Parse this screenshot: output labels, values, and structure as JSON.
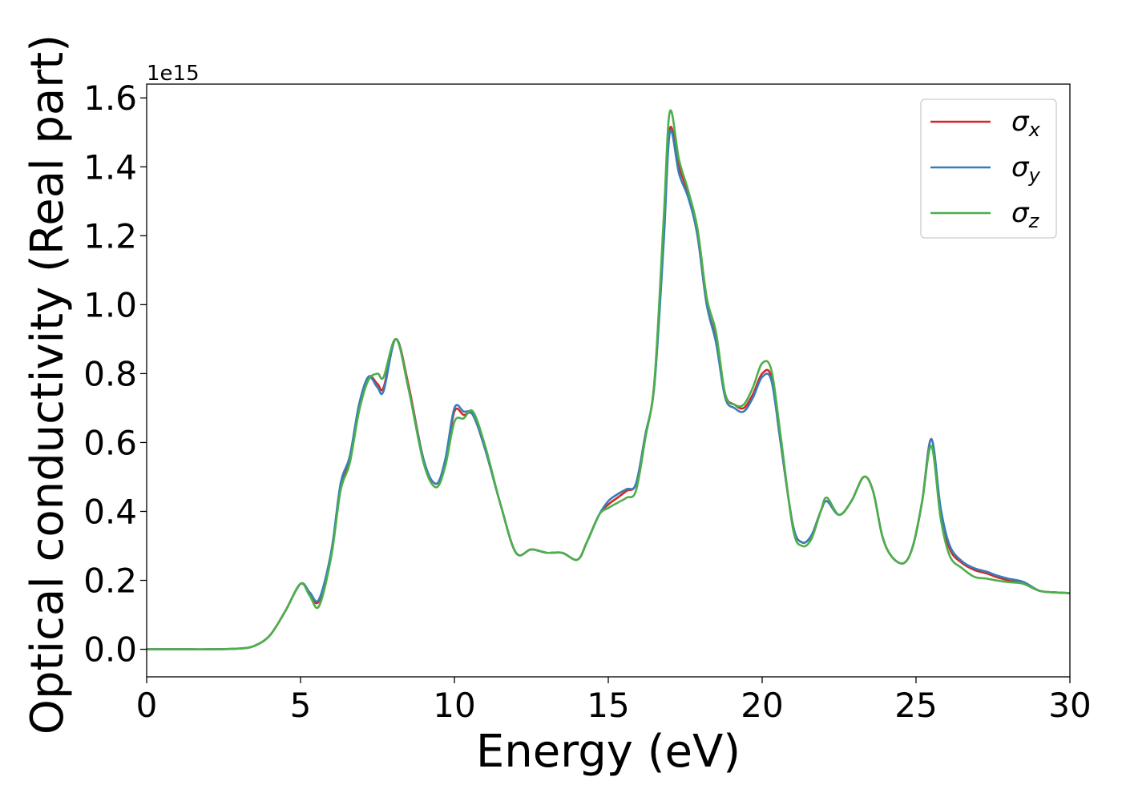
{
  "chart_data": {
    "type": "line",
    "xlabel": "Energy (eV)",
    "ylabel": "Optical conductivity (Real part)",
    "y_offset_label": "1e15",
    "xlim": [
      0,
      30
    ],
    "ylim": [
      -0.08,
      1.64
    ],
    "xticks": [
      0,
      5,
      10,
      15,
      20,
      25,
      30
    ],
    "xtick_labels": [
      "0",
      "5",
      "10",
      "15",
      "20",
      "25",
      "30"
    ],
    "yticks": [
      0.0,
      0.2,
      0.4,
      0.6,
      0.8,
      1.0,
      1.2,
      1.4,
      1.6
    ],
    "ytick_labels": [
      "0.0",
      "0.2",
      "0.4",
      "0.6",
      "0.8",
      "1.0",
      "1.2",
      "1.4",
      "1.6"
    ],
    "grid": false,
    "legend_position": "top-right",
    "series": [
      {
        "name": "σx",
        "name_main": "σ",
        "name_sub": "x",
        "color": "#d62728",
        "x": [
          0,
          1,
          2,
          3,
          3.5,
          4,
          4.5,
          5,
          5.3,
          5.6,
          6,
          6.3,
          6.6,
          6.9,
          7.2,
          7.5,
          7.7,
          8.1,
          8.5,
          9,
          9.4,
          9.7,
          10,
          10.3,
          10.6,
          11,
          11.5,
          12,
          12.5,
          13,
          13.5,
          14,
          14.3,
          14.7,
          15,
          15.3,
          15.6,
          15.9,
          16.2,
          16.5,
          16.8,
          17,
          17.3,
          17.6,
          17.9,
          18.2,
          18.5,
          18.8,
          19.1,
          19.4,
          19.7,
          20,
          20.3,
          20.6,
          21,
          21.3,
          21.6,
          21.9,
          22.1,
          22.5,
          22.9,
          23.3,
          23.6,
          23.9,
          24.2,
          24.6,
          24.9,
          25.2,
          25.5,
          25.8,
          26.1,
          26.5,
          26.9,
          27.3,
          27.6,
          28,
          28.5,
          29,
          29.5,
          30
        ],
        "y": [
          0,
          0,
          0,
          0.002,
          0.01,
          0.04,
          0.11,
          0.19,
          0.16,
          0.14,
          0.28,
          0.47,
          0.55,
          0.7,
          0.79,
          0.77,
          0.76,
          0.9,
          0.77,
          0.55,
          0.48,
          0.54,
          0.69,
          0.68,
          0.68,
          0.58,
          0.42,
          0.28,
          0.29,
          0.28,
          0.28,
          0.26,
          0.31,
          0.39,
          0.42,
          0.44,
          0.46,
          0.48,
          0.62,
          0.77,
          1.2,
          1.51,
          1.4,
          1.32,
          1.2,
          1.0,
          0.9,
          0.74,
          0.71,
          0.7,
          0.74,
          0.8,
          0.79,
          0.6,
          0.36,
          0.31,
          0.33,
          0.4,
          0.43,
          0.39,
          0.43,
          0.5,
          0.46,
          0.33,
          0.27,
          0.25,
          0.3,
          0.43,
          0.61,
          0.4,
          0.29,
          0.25,
          0.23,
          0.22,
          0.21,
          0.2,
          0.19,
          0.17,
          0.165,
          0.163
        ]
      },
      {
        "name": "σy",
        "name_main": "σ",
        "name_sub": "y",
        "color": "#377eb8",
        "x": [
          0,
          1,
          2,
          3,
          3.5,
          4,
          4.5,
          5,
          5.3,
          5.6,
          6,
          6.3,
          6.6,
          6.9,
          7.2,
          7.5,
          7.7,
          8.1,
          8.5,
          9,
          9.4,
          9.7,
          10,
          10.3,
          10.6,
          11,
          11.5,
          12,
          12.5,
          13,
          13.5,
          14,
          14.3,
          14.7,
          15,
          15.3,
          15.6,
          15.9,
          16.2,
          16.5,
          16.8,
          17,
          17.3,
          17.6,
          17.9,
          18.2,
          18.5,
          18.8,
          19.1,
          19.4,
          19.7,
          20,
          20.3,
          20.6,
          21,
          21.3,
          21.6,
          21.9,
          22.1,
          22.5,
          22.9,
          23.3,
          23.6,
          23.9,
          24.2,
          24.6,
          24.9,
          25.2,
          25.5,
          25.8,
          26.1,
          26.5,
          26.9,
          27.3,
          27.6,
          28,
          28.5,
          29,
          29.5,
          30
        ],
        "y": [
          0,
          0,
          0,
          0.002,
          0.01,
          0.04,
          0.11,
          0.19,
          0.165,
          0.145,
          0.285,
          0.48,
          0.56,
          0.71,
          0.79,
          0.76,
          0.75,
          0.9,
          0.76,
          0.55,
          0.48,
          0.55,
          0.7,
          0.69,
          0.68,
          0.58,
          0.42,
          0.28,
          0.29,
          0.28,
          0.28,
          0.26,
          0.31,
          0.39,
          0.43,
          0.45,
          0.465,
          0.48,
          0.62,
          0.77,
          1.18,
          1.5,
          1.38,
          1.31,
          1.2,
          1.0,
          0.89,
          0.73,
          0.7,
          0.69,
          0.73,
          0.79,
          0.78,
          0.6,
          0.36,
          0.31,
          0.33,
          0.4,
          0.43,
          0.39,
          0.43,
          0.5,
          0.46,
          0.33,
          0.27,
          0.25,
          0.3,
          0.43,
          0.61,
          0.41,
          0.3,
          0.255,
          0.235,
          0.225,
          0.215,
          0.205,
          0.195,
          0.17,
          0.165,
          0.163
        ]
      },
      {
        "name": "σz",
        "name_main": "σ",
        "name_sub": "z",
        "color": "#4daf4a",
        "x": [
          0,
          1,
          2,
          3,
          3.5,
          4,
          4.5,
          5,
          5.3,
          5.6,
          6,
          6.3,
          6.6,
          6.9,
          7.2,
          7.5,
          7.7,
          8.1,
          8.5,
          9,
          9.4,
          9.7,
          10,
          10.3,
          10.6,
          11,
          11.5,
          12,
          12.5,
          13,
          13.5,
          14,
          14.3,
          14.7,
          15,
          15.3,
          15.6,
          15.9,
          16.2,
          16.5,
          16.8,
          17,
          17.3,
          17.6,
          17.9,
          18.2,
          18.5,
          18.8,
          19.1,
          19.4,
          19.7,
          20,
          20.3,
          20.6,
          21,
          21.3,
          21.6,
          21.9,
          22.1,
          22.5,
          22.9,
          23.3,
          23.6,
          23.9,
          24.2,
          24.6,
          24.9,
          25.2,
          25.5,
          25.8,
          26.1,
          26.5,
          26.9,
          27.3,
          27.6,
          28,
          28.5,
          29,
          29.5,
          30
        ],
        "y": [
          0,
          0,
          0,
          0.002,
          0.01,
          0.04,
          0.11,
          0.19,
          0.155,
          0.125,
          0.27,
          0.46,
          0.54,
          0.69,
          0.78,
          0.8,
          0.79,
          0.9,
          0.76,
          0.54,
          0.47,
          0.53,
          0.66,
          0.67,
          0.69,
          0.59,
          0.42,
          0.28,
          0.29,
          0.28,
          0.28,
          0.26,
          0.31,
          0.39,
          0.41,
          0.425,
          0.44,
          0.46,
          0.61,
          0.78,
          1.25,
          1.56,
          1.42,
          1.33,
          1.22,
          1.02,
          0.92,
          0.74,
          0.71,
          0.71,
          0.76,
          0.83,
          0.81,
          0.62,
          0.35,
          0.3,
          0.32,
          0.4,
          0.44,
          0.39,
          0.43,
          0.5,
          0.46,
          0.33,
          0.27,
          0.25,
          0.3,
          0.43,
          0.59,
          0.38,
          0.27,
          0.235,
          0.21,
          0.205,
          0.2,
          0.195,
          0.19,
          0.17,
          0.165,
          0.163
        ]
      }
    ]
  }
}
